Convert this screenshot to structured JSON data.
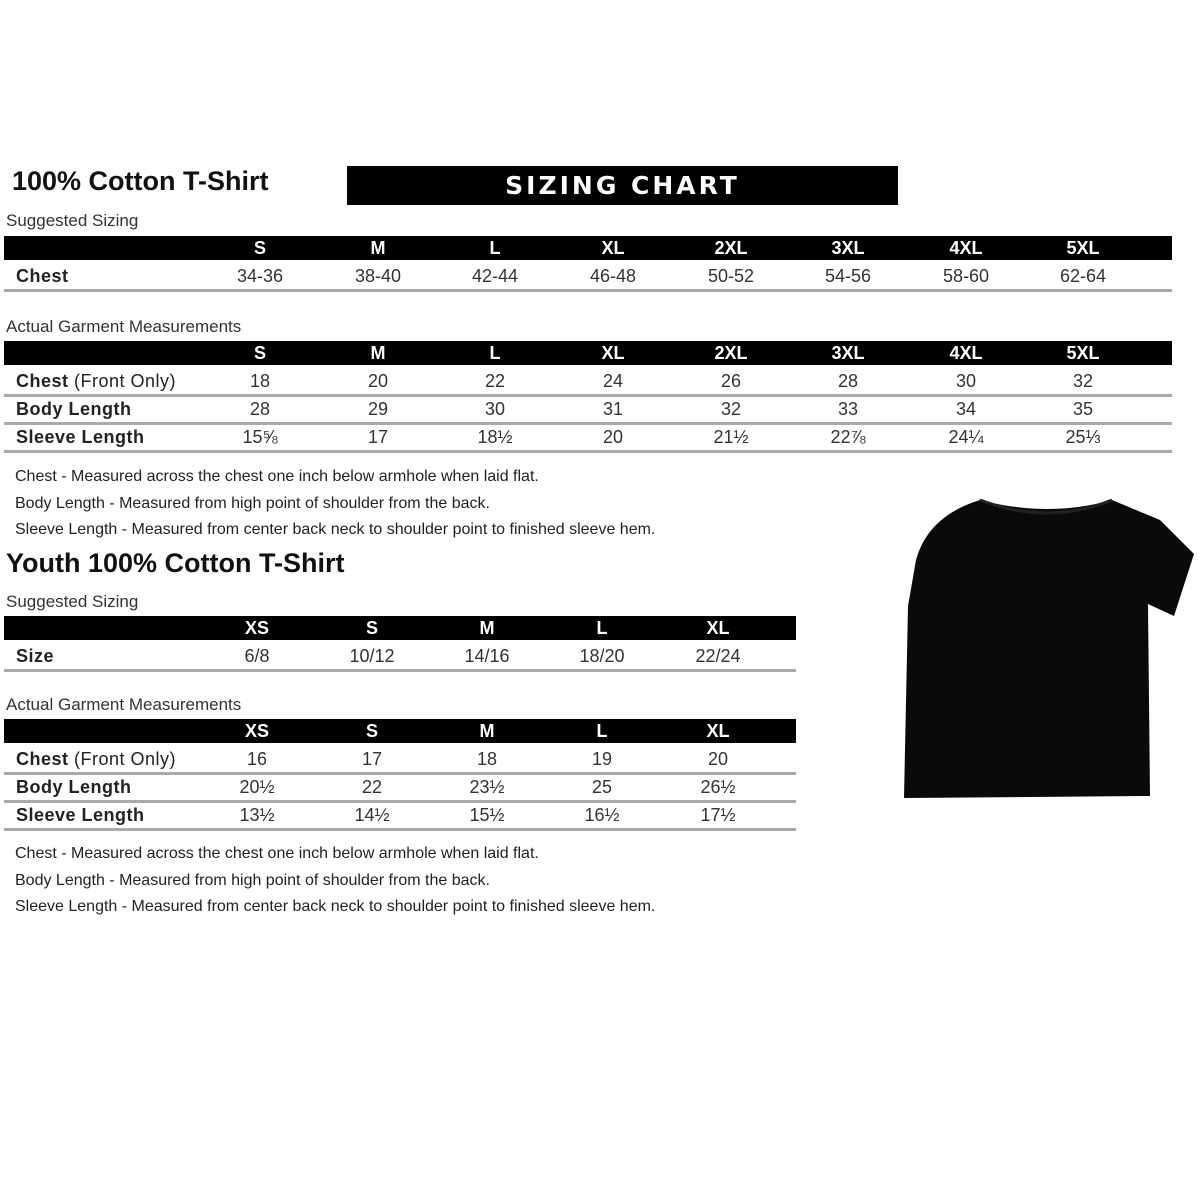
{
  "adult": {
    "title": "100% Cotton T-Shirt",
    "banner": "SIZING CHART",
    "suggested_label": "Suggested Sizing",
    "sizes": [
      "S",
      "M",
      "L",
      "XL",
      "2XL",
      "3XL",
      "4XL",
      "5XL"
    ],
    "suggested_rows": [
      {
        "label": "Chest",
        "values": [
          "34-36",
          "38-40",
          "42-44",
          "46-48",
          "50-52",
          "54-56",
          "58-60",
          "62-64"
        ]
      }
    ],
    "actual_label": "Actual Garment Measurements",
    "actual_rows": [
      {
        "label": "Chest",
        "label_note": "(Front Only)",
        "values": [
          "18",
          "20",
          "22",
          "24",
          "26",
          "28",
          "30",
          "32"
        ]
      },
      {
        "label": "Body Length",
        "label_note": "",
        "values": [
          "28",
          "29",
          "30",
          "31",
          "32",
          "33",
          "34",
          "35"
        ]
      },
      {
        "label": "Sleeve Length",
        "label_note": "",
        "values": [
          "15⅝",
          "17",
          "18½",
          "20",
          "21½",
          "22⅞",
          "24¼",
          "25⅓"
        ]
      }
    ],
    "notes": [
      "Chest - Measured across the chest one inch below armhole when laid flat.",
      "Body Length - Measured from high point of shoulder from the back.",
      "Sleeve Length - Measured from center back neck to shoulder point to finished sleeve hem."
    ]
  },
  "youth": {
    "title": "Youth 100% Cotton T-Shirt",
    "suggested_label": "Suggested Sizing",
    "sizes": [
      "XS",
      "S",
      "M",
      "L",
      "XL"
    ],
    "suggested_rows": [
      {
        "label": "Size",
        "values": [
          "6/8",
          "10/12",
          "14/16",
          "18/20",
          "22/24"
        ]
      }
    ],
    "actual_label": "Actual Garment Measurements",
    "actual_rows": [
      {
        "label": "Chest",
        "label_note": "(Front Only)",
        "values": [
          "16",
          "17",
          "18",
          "19",
          "20"
        ]
      },
      {
        "label": "Body Length",
        "label_note": "",
        "values": [
          "20½",
          "22",
          "23½",
          "25",
          "26½"
        ]
      },
      {
        "label": "Sleeve Length",
        "label_note": "",
        "values": [
          "13½",
          "14½",
          "15½",
          "16½",
          "17½"
        ]
      }
    ],
    "notes": [
      "Chest - Measured across the chest one inch below armhole when laid flat.",
      "Body Length - Measured from high point of shoulder from the back.",
      "Sleeve Length - Measured from center back neck to shoulder point to finished sleeve hem."
    ]
  },
  "image": {
    "icon": "tshirt-icon",
    "color": "#0a0a0a"
  }
}
